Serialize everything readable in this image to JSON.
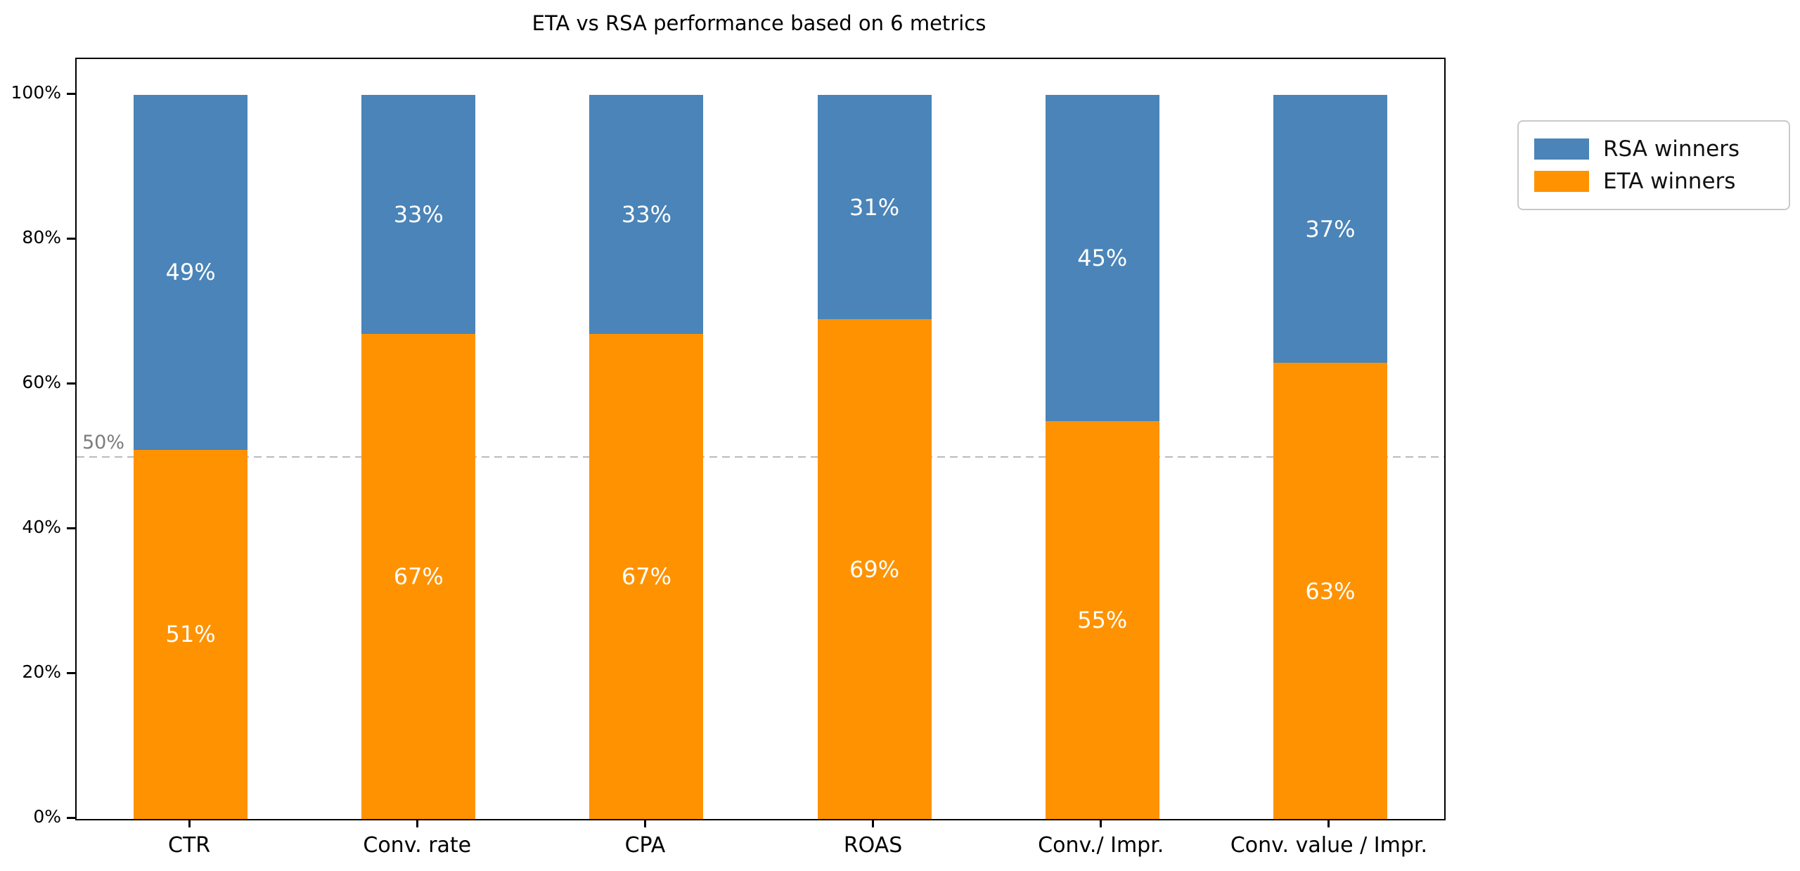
{
  "chart_data": {
    "type": "bar",
    "stacked": true,
    "orientation": "vertical",
    "title": "ETA vs RSA performance based on 6 metrics",
    "categories": [
      "CTR",
      "Conv. rate",
      "CPA",
      "ROAS",
      "Conv./ Impr.",
      "Conv. value / Impr."
    ],
    "series": [
      {
        "name": "ETA winners",
        "color": "#FF9200",
        "values": [
          51,
          67,
          67,
          69,
          55,
          63
        ]
      },
      {
        "name": "RSA winners",
        "color": "#4A84B8",
        "values": [
          49,
          33,
          33,
          31,
          45,
          37
        ]
      }
    ],
    "value_label_suffix": "%",
    "value_label_color": "#ffffff",
    "xlabel": "",
    "ylabel": "",
    "ylim": [
      0,
      105
    ],
    "yticks": [
      {
        "value": 0,
        "label": "0%"
      },
      {
        "value": 20,
        "label": "20%"
      },
      {
        "value": 40,
        "label": "40%"
      },
      {
        "value": 60,
        "label": "60%"
      },
      {
        "value": 80,
        "label": "80%"
      },
      {
        "value": 100,
        "label": "100%"
      }
    ],
    "reference_line": {
      "value": 50,
      "label": "50%",
      "style": "dashed",
      "color": "#bbbbbb",
      "label_color": "#7c7c7c"
    },
    "grid": false,
    "legend": {
      "position": "outside-upper-right",
      "entries": [
        "RSA winners",
        "ETA winners"
      ]
    }
  }
}
